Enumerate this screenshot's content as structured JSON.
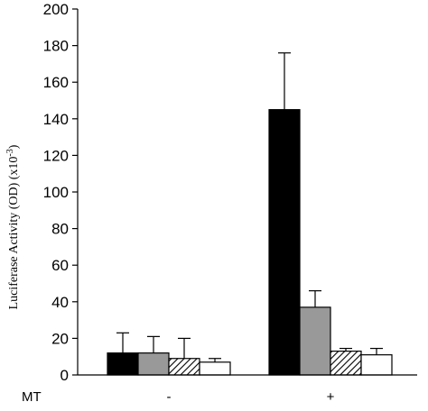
{
  "chart_data": {
    "type": "bar",
    "ylabel": "Luciferase Activity (OD) (x10",
    "ylabel_exponent": "-3",
    "ylabel_close": ")",
    "ylim": [
      0,
      200
    ],
    "yticks": [
      0,
      20,
      40,
      60,
      80,
      100,
      120,
      140,
      160,
      180,
      200
    ],
    "group_axis_label": "MT",
    "categories": [
      "-",
      "+"
    ],
    "series": [
      {
        "fill": "black",
        "values": [
          12,
          145
        ],
        "errors": [
          11,
          31
        ]
      },
      {
        "fill": "gray",
        "values": [
          12,
          37
        ],
        "errors": [
          9,
          9
        ]
      },
      {
        "fill": "hatched",
        "values": [
          9,
          13
        ],
        "errors": [
          11,
          1.5
        ]
      },
      {
        "fill": "white",
        "values": [
          7,
          11
        ],
        "errors": [
          2,
          3.5
        ]
      }
    ],
    "colors": {
      "black": "#000000",
      "gray": "#999999",
      "white": "#ffffff",
      "hatch": "#000000"
    },
    "grid": false,
    "legend": "none"
  }
}
